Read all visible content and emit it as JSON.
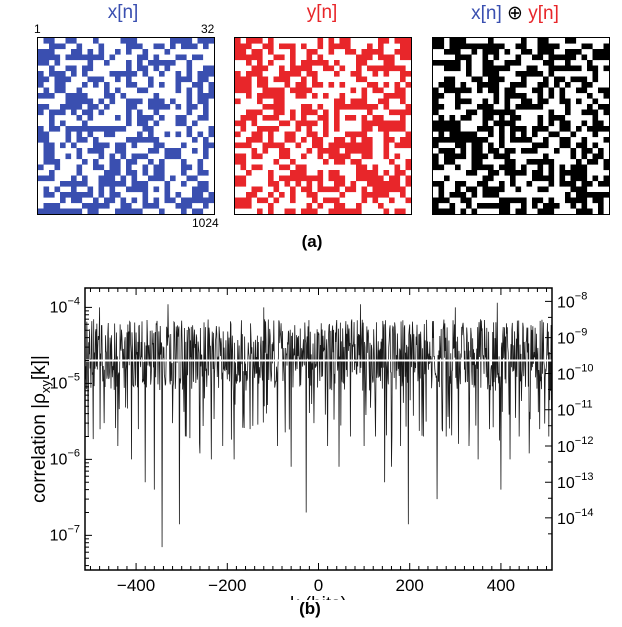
{
  "panel_a": {
    "titles": {
      "x": "x[n]",
      "y": "y[n]",
      "xor_left": "x[n]",
      "xor_symbol": "⊕",
      "xor_right": "y[n]"
    },
    "corner_first": "1",
    "corner_row_end": "32",
    "corner_last": "1024",
    "sublabel": "(a)",
    "colors": {
      "x": "#3a4fb0",
      "y": "#e8262a",
      "xor": "#000000",
      "background": "#ffffff"
    }
  },
  "panel_b": {
    "sublabel": "(b)",
    "chart_data": {
      "type": "line",
      "xlabel": "k (bits)",
      "ylabel_main": "correlation |ρ",
      "ylabel_sub": "xy",
      "ylabel_tail": "[k]|",
      "xlim": [
        -512,
        512
      ],
      "ylim": [
        3.5e-08,
        0.00018
      ],
      "yscale": "log",
      "xticks": [
        -400,
        -200,
        0,
        200,
        400
      ],
      "xtick_labels": [
        "−400",
        "−200",
        "0",
        "200",
        "400"
      ],
      "yticks_left": [
        {
          "value": 0.0001,
          "base": "10",
          "exp": "−4"
        },
        {
          "value": 1e-05,
          "base": "10",
          "exp": "−5"
        },
        {
          "value": 1e-06,
          "base": "10",
          "exp": "−6"
        },
        {
          "value": 1e-07,
          "base": "10",
          "exp": "−7"
        }
      ],
      "yticks_right": [
        {
          "value": 0.00012,
          "base": "10",
          "exp": "−8"
        },
        {
          "value": 4e-05,
          "base": "10",
          "exp": "−9"
        },
        {
          "value": 1.35e-05,
          "base": "10",
          "exp": "−10"
        },
        {
          "value": 4.5e-06,
          "base": "10",
          "exp": "−11"
        },
        {
          "value": 1.5e-06,
          "base": "10",
          "exp": "−12"
        },
        {
          "value": 5e-07,
          "base": "10",
          "exp": "−13"
        },
        {
          "value": 1.7e-07,
          "base": "10",
          "exp": "−14"
        }
      ],
      "reference_level": 2e-05,
      "series_color": "#1a1a1a",
      "reference_color": "#ffffff",
      "band_low": 8e-06,
      "band_high": 7e-05,
      "dips": [
        {
          "k": -505,
          "value": 2e-06
        },
        {
          "k": -470,
          "value": 3e-06
        },
        {
          "k": -440,
          "value": 1.5e-06
        },
        {
          "k": -410,
          "value": 1e-06
        },
        {
          "k": -395,
          "value": 2.5e-06
        },
        {
          "k": -380,
          "value": 5e-07
        },
        {
          "k": -360,
          "value": 4e-07
        },
        {
          "k": -343,
          "value": 7e-08
        },
        {
          "k": -320,
          "value": 3e-06
        },
        {
          "k": -305,
          "value": 1.4e-07
        },
        {
          "k": -290,
          "value": 2e-06
        },
        {
          "k": -260,
          "value": 1.2e-06
        },
        {
          "k": -235,
          "value": 1e-06
        },
        {
          "k": -210,
          "value": 1.5e-06
        },
        {
          "k": -185,
          "value": 1e-06
        },
        {
          "k": -150,
          "value": 2.5e-06
        },
        {
          "k": -120,
          "value": 8e-07
        },
        {
          "k": -90,
          "value": 1.5e-06
        },
        {
          "k": -60,
          "value": 8e-07
        },
        {
          "k": -27,
          "value": 2e-07
        },
        {
          "k": -10,
          "value": 3e-06
        },
        {
          "k": 20,
          "value": 1.5e-06
        },
        {
          "k": 45,
          "value": 8e-07
        },
        {
          "k": 70,
          "value": 2e-06
        },
        {
          "k": 100,
          "value": 1.5e-06
        },
        {
          "k": 125,
          "value": 2e-06
        },
        {
          "k": 145,
          "value": 5e-07
        },
        {
          "k": 160,
          "value": 8e-07
        },
        {
          "k": 180,
          "value": 1.5e-06
        },
        {
          "k": 197,
          "value": 1.4e-07
        },
        {
          "k": 230,
          "value": 2e-06
        },
        {
          "k": 260,
          "value": 3e-07
        },
        {
          "k": 280,
          "value": 2e-06
        },
        {
          "k": 300,
          "value": 1e-06
        },
        {
          "k": 330,
          "value": 1.5e-06
        },
        {
          "k": 350,
          "value": 1e-06
        },
        {
          "k": 375,
          "value": 2.5e-06
        },
        {
          "k": 400,
          "value": 4e-07
        },
        {
          "k": 420,
          "value": 1e-06
        },
        {
          "k": 440,
          "value": 2e-06
        },
        {
          "k": 462,
          "value": 1.2e-06
        },
        {
          "k": 485,
          "value": 2.5e-06
        },
        {
          "k": 505,
          "value": 2e-06
        }
      ],
      "peaks": [
        {
          "k": -480,
          "value": 0.0001
        },
        {
          "k": -330,
          "value": 0.00011
        },
        {
          "k": -120,
          "value": 0.0001
        },
        {
          "k": 92,
          "value": 0.00011
        },
        {
          "k": 300,
          "value": 0.0001
        },
        {
          "k": 392,
          "value": 0.000115
        }
      ]
    }
  }
}
